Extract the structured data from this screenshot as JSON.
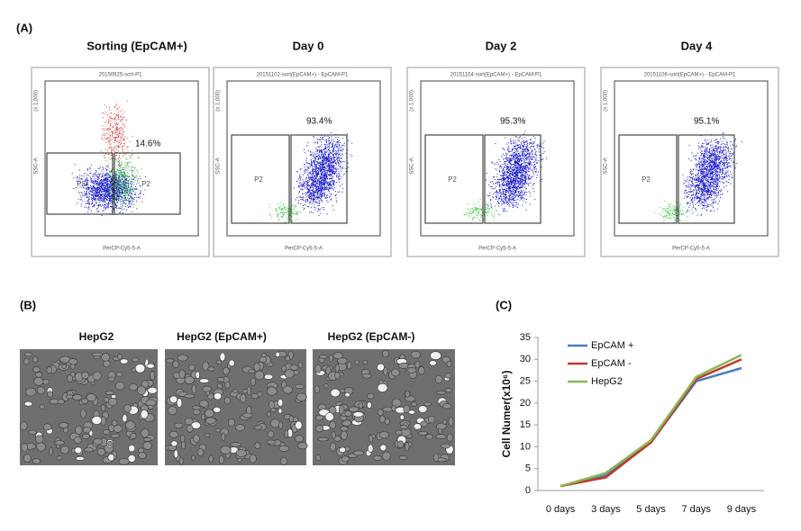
{
  "panel_a": {
    "label": "(A)",
    "plots": [
      {
        "title": "Sorting (EpCAM+)",
        "header": "20150925-sort-P1",
        "scale": "(x 1,000)",
        "y_axis": "SSC-A",
        "x_axis": "PerCP-Cy5-5-A",
        "gates": [
          "P3",
          "P2"
        ],
        "percent": "14.6%"
      },
      {
        "title": "Day 0",
        "header": "20151102-sort(EpCAM+) - EpCAM-P1",
        "scale": "(x 1,000)",
        "y_axis": "SSC-A",
        "x_axis": "PerCP-Cy5-5-A",
        "gates": [
          "P2"
        ],
        "percent": "93.4%"
      },
      {
        "title": "Day 2",
        "header": "20151104-sort(EpCAM+) - EpCAM-P1",
        "scale": "(x 1,000)",
        "y_axis": "SSC-A",
        "x_axis": "PerCP-Cy5-5-A",
        "gates": [
          "P2"
        ],
        "percent": "95.3%"
      },
      {
        "title": "Day 4",
        "header": "20151106-sort(EpCAM+) - EpCAM-P1",
        "scale": "(x 1,000)",
        "y_axis": "SSC-A",
        "x_axis": "PerCP-Cy5-5-A",
        "gates": [
          "P2"
        ],
        "percent": "95.1%"
      }
    ]
  },
  "panel_b": {
    "label": "(B)",
    "images": [
      {
        "title": "HepG2"
      },
      {
        "title": "HepG2  (EpCAM+)"
      },
      {
        "title": "HepG2  (EpCAM-)"
      }
    ]
  },
  "panel_c": {
    "label": "(C)"
  },
  "chart_data": {
    "type": "line",
    "y_label": "Cell Numer(x10⁶)",
    "categories": [
      "0 days",
      "3 days",
      "5 days",
      "7 days",
      "9 days"
    ],
    "series": [
      {
        "name": "EpCAM +",
        "color": "#4a7ebb",
        "values": [
          1,
          3.5,
          11,
          25,
          28
        ]
      },
      {
        "name": "EpCAM -",
        "color": "#c0392b",
        "values": [
          1,
          3,
          11,
          25.5,
          30
        ]
      },
      {
        "name": "HepG2",
        "color": "#8db654",
        "values": [
          1,
          4,
          11.5,
          26,
          31
        ]
      }
    ],
    "ylim": [
      0,
      35
    ],
    "yticks": [
      0,
      5,
      10,
      15,
      20,
      25,
      30,
      35
    ],
    "grid": false
  }
}
